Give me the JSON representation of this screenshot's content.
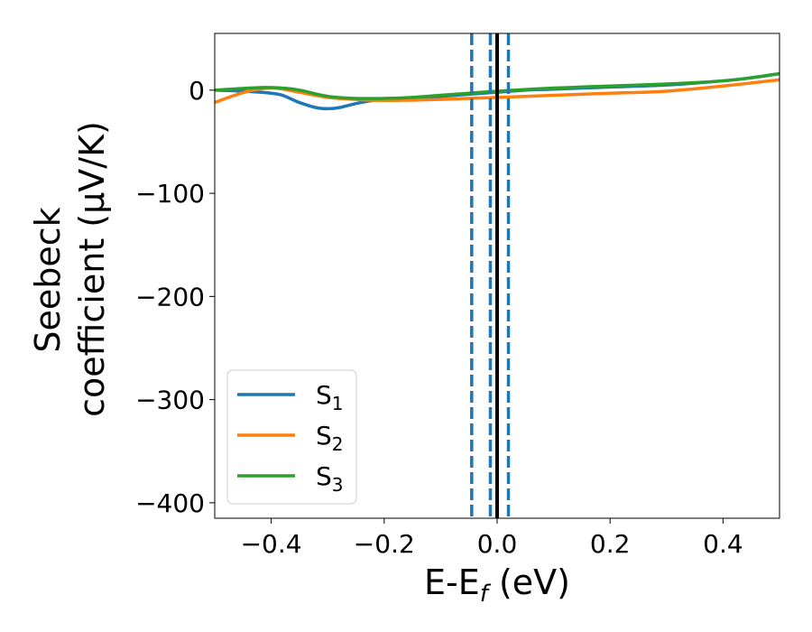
{
  "chart_data": {
    "type": "line",
    "xlabel": {
      "main": "E-E",
      "sub": "f",
      "suffix": " (eV)"
    },
    "ylabel": {
      "line1": "Seebeck",
      "line2": "coefficient  (μV/K)"
    },
    "xlim": [
      -0.5,
      0.5
    ],
    "ylim": [
      -415,
      55
    ],
    "xticks": [
      -0.4,
      -0.2,
      0.0,
      0.2,
      0.4
    ],
    "xtick_labels": [
      "−0.4",
      "−0.2",
      "0.0",
      "0.2",
      "0.4"
    ],
    "yticks": [
      0,
      -100,
      -200,
      -300,
      -400
    ],
    "ytick_labels": [
      "0",
      "−100",
      "−200",
      "−300",
      "−400"
    ],
    "legend": {
      "position": "lower-left"
    },
    "series": [
      {
        "name": "S",
        "sub": "1",
        "color": "#1f77b4",
        "x": [
          -0.5,
          -0.45,
          -0.42,
          -0.4,
          -0.38,
          -0.35,
          -0.32,
          -0.3,
          -0.28,
          -0.25,
          -0.22,
          -0.2,
          -0.15,
          -0.1,
          -0.05,
          0.0,
          0.05,
          0.1,
          0.2,
          0.3,
          0.4,
          0.45,
          0.5
        ],
        "y": [
          0,
          -1,
          -2,
          -3,
          -5,
          -12,
          -17,
          -18,
          -17,
          -13,
          -10,
          -9,
          -8,
          -6,
          -4,
          -2,
          0,
          1,
          3,
          5,
          9,
          12,
          16
        ]
      },
      {
        "name": "S",
        "sub": "2",
        "color": "#ff7f0e",
        "x": [
          -0.5,
          -0.47,
          -0.44,
          -0.42,
          -0.4,
          -0.38,
          -0.35,
          -0.3,
          -0.25,
          -0.2,
          -0.1,
          0.0,
          0.1,
          0.2,
          0.3,
          0.4,
          0.5
        ],
        "y": [
          -12,
          -6,
          -1,
          1,
          2,
          1,
          -2,
          -7,
          -9,
          -10,
          -9,
          -7,
          -5,
          -3,
          -1,
          4,
          10
        ]
      },
      {
        "name": "S",
        "sub": "3",
        "color": "#2ca02c",
        "x": [
          -0.5,
          -0.47,
          -0.44,
          -0.42,
          -0.4,
          -0.38,
          -0.35,
          -0.3,
          -0.25,
          -0.2,
          -0.15,
          -0.1,
          -0.05,
          0.0,
          0.1,
          0.2,
          0.3,
          0.4,
          0.45,
          0.5
        ],
        "y": [
          0,
          1,
          2,
          2.5,
          2.5,
          2,
          0,
          -6,
          -8,
          -8,
          -7,
          -5,
          -3,
          -1,
          2,
          4,
          6,
          9,
          12,
          16
        ]
      }
    ],
    "vlines": [
      {
        "x": -0.045,
        "style": "dashed",
        "color": "#1f77b4"
      },
      {
        "x": -0.012,
        "style": "dashed",
        "color": "#1f77b4"
      },
      {
        "x": 0.02,
        "style": "dashed",
        "color": "#1f77b4"
      },
      {
        "x": 0.0,
        "style": "solid",
        "color": "#000000"
      }
    ]
  }
}
